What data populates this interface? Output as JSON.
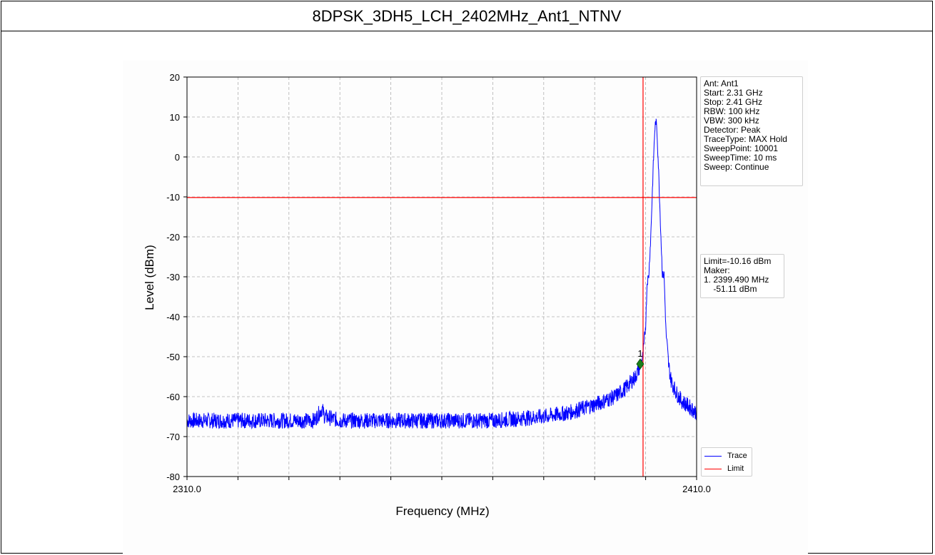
{
  "title": "8DPSK_3DH5_LCH_2402MHz_Ant1_NTNV",
  "info_box": [
    "Ant: Ant1",
    "Start: 2.31 GHz",
    "Stop: 2.41 GHz",
    "RBW: 100 kHz",
    "VBW: 300 kHz",
    "Detector: Peak",
    "TraceType: MAX Hold",
    "SweepPoint: 10001",
    "SweepTime: 10 ms",
    "Sweep: Continue"
  ],
  "limit_box": [
    "Limit=-10.16 dBm",
    "Maker:",
    "1. 2399.490 MHz",
    "    -51.11 dBm"
  ],
  "colors": {
    "trace": "#0000ff",
    "limit": "#ff0000",
    "marker": "#1a7f1a",
    "grid": "#b0b0b0"
  },
  "chart_data": {
    "type": "line",
    "title": "",
    "xlabel": "Frequency (MHz)",
    "ylabel": "Level (dBm)",
    "xlim": [
      2310.0,
      2410.0
    ],
    "ylim": [
      -80,
      20
    ],
    "x_tick_labels": [
      "2310.0",
      "2410.0"
    ],
    "x_gridlines": [
      2310,
      2320,
      2330,
      2340,
      2350,
      2360,
      2370,
      2380,
      2390,
      2400,
      2410
    ],
    "y_ticks": [
      20,
      10,
      0,
      -10,
      -20,
      -30,
      -40,
      -50,
      -60,
      -70,
      -80
    ],
    "grid": true,
    "legend_position": "bottom-right",
    "series": [
      {
        "name": "Trace",
        "color": "#0000ff",
        "x": [
          2310,
          2315,
          2320,
          2325,
          2330,
          2335,
          2336.5,
          2337,
          2340,
          2345,
          2350,
          2355,
          2360,
          2365,
          2370,
          2375,
          2380,
          2385,
          2390,
          2394,
          2396,
          2398,
          2399,
          2399.5,
          2400,
          2400.3,
          2400.6,
          2401,
          2401.5,
          2401.8,
          2402,
          2402.2,
          2402.5,
          2403,
          2403.3,
          2403.6,
          2404,
          2404.5,
          2405,
          2406,
          2407,
          2408,
          2409,
          2410
        ],
        "y": [
          -66,
          -66,
          -66,
          -66,
          -66,
          -66,
          -63,
          -65,
          -66,
          -66,
          -66,
          -66,
          -66,
          -66,
          -66,
          -65.5,
          -65,
          -64,
          -62,
          -60,
          -58,
          -55,
          -52,
          -50,
          -42,
          -31,
          -30,
          -20,
          -2,
          7,
          9,
          7,
          -2,
          -20,
          -30,
          -29,
          -44,
          -52,
          -56,
          -59,
          -61,
          -62,
          -63,
          -64
        ]
      },
      {
        "name": "Limit",
        "color": "#ff0000",
        "x": [
          2310,
          2410
        ],
        "y": [
          -10.16,
          -10.16
        ]
      }
    ],
    "vertical_line": {
      "x": 2399.49,
      "color": "#ff0000"
    },
    "markers": [
      {
        "label": "1",
        "x": 2399.49,
        "y": -51.11
      }
    ]
  }
}
